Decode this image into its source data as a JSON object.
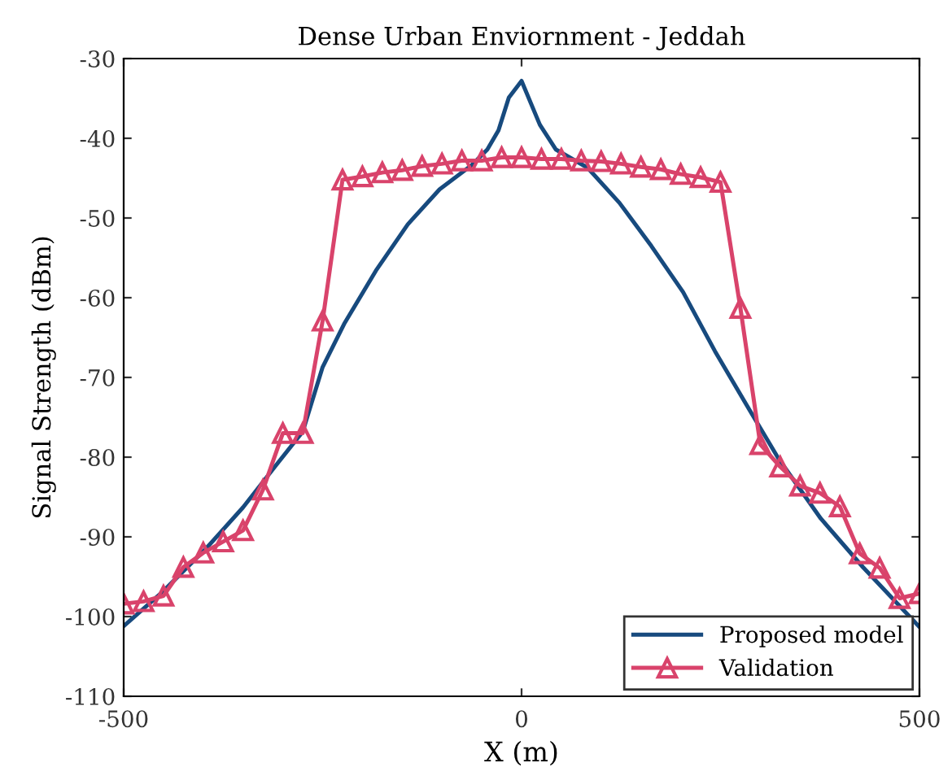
{
  "chart_data": {
    "type": "line",
    "title": "Dense Urban Enviornment - Jeddah",
    "xlabel": "X (m)",
    "ylabel": "Signal Strength (dBm)",
    "xlim": [
      -500,
      500
    ],
    "xticks": [
      -500,
      0,
      500
    ],
    "ylim": [
      -110,
      -30
    ],
    "yticks": [
      -110,
      -100,
      -90,
      -80,
      -70,
      -60,
      -50,
      -40,
      -30
    ],
    "grid": false,
    "legend": "bottom right",
    "series": [
      {
        "name": "Proposed model",
        "color": "#174a7e",
        "marker": "none",
        "x": [
          -500,
          -450,
          -396,
          -350,
          -310,
          -275,
          -250,
          -223,
          -183,
          -143,
          -103,
          -63,
          -43,
          -29,
          -16,
          0,
          23,
          43,
          83,
          123,
          163,
          203,
          243,
          283,
          323,
          376,
          429,
          499
        ],
        "values": [
          -101.2,
          -96.8,
          -91.4,
          -86.3,
          -81.2,
          -76.8,
          -68.7,
          -63.3,
          -56.6,
          -50.8,
          -46.4,
          -43.4,
          -41.4,
          -39,
          -34.9,
          -32.8,
          -38.3,
          -41.4,
          -43.7,
          -48.1,
          -53.5,
          -59.3,
          -66.7,
          -73.5,
          -80.2,
          -87.7,
          -93.8,
          -101.2
        ]
      },
      {
        "name": "Validation",
        "color": "#d9436b",
        "marker": "triangle",
        "x": [
          -500,
          -475,
          -450,
          -425,
          -400,
          -375,
          -350,
          -325,
          -300,
          -275,
          -250,
          -225,
          -200,
          -175,
          -150,
          -125,
          -100,
          -75,
          -50,
          -25,
          0,
          25,
          50,
          75,
          100,
          125,
          150,
          175,
          200,
          225,
          250,
          275,
          300,
          325,
          350,
          375,
          400,
          425,
          450,
          475,
          500
        ],
        "values": [
          -98.4,
          -98.1,
          -97.4,
          -93.8,
          -92.0,
          -90.6,
          -89.2,
          -84.1,
          -77.0,
          -77.0,
          -62.9,
          -45.2,
          -44.8,
          -44.3,
          -44.0,
          -43.5,
          -43.2,
          -42.8,
          -42.8,
          -42.4,
          -42.4,
          -42.6,
          -42.6,
          -42.8,
          -42.9,
          -43.2,
          -43.6,
          -43.9,
          -44.5,
          -44.9,
          -45.5,
          -61.3,
          -78.4,
          -81.2,
          -83.6,
          -84.5,
          -86.2,
          -92.1,
          -93.9,
          -97.7,
          -97.1
        ]
      }
    ]
  }
}
